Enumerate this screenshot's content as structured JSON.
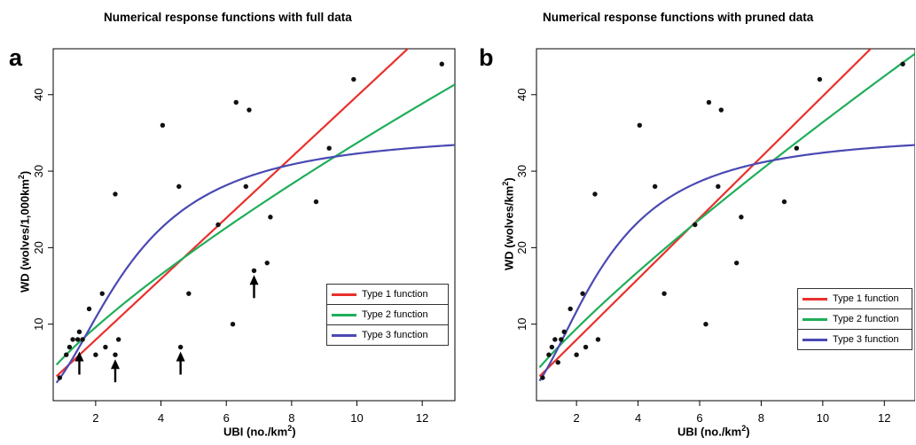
{
  "colors": {
    "type1": "#e8312d",
    "type2": "#1fae5a",
    "type3": "#4a49b3"
  },
  "chart_data": [
    {
      "type": "scatter",
      "panel_label": "a",
      "title": "Numerical response functions with full data",
      "xlabel": "UBI (no./km",
      "xlabel_sup": "2",
      "xlabel_end": ")",
      "ylabel": "WD (wolves/1,000km",
      "ylabel_sup": "2",
      "ylabel_end": ")",
      "xlim": [
        0.7,
        13
      ],
      "ylim": [
        0,
        46
      ],
      "x_ticks": [
        2,
        4,
        6,
        8,
        10,
        12
      ],
      "y_ticks": [
        10,
        20,
        30,
        40
      ],
      "grid": false,
      "legend_position": "bottom-right",
      "points": [
        [
          0.9,
          3
        ],
        [
          1.1,
          6
        ],
        [
          1.2,
          7
        ],
        [
          1.3,
          8
        ],
        [
          1.45,
          8
        ],
        [
          1.5,
          9
        ],
        [
          1.6,
          8
        ],
        [
          1.8,
          12
        ],
        [
          2.0,
          6
        ],
        [
          2.2,
          14
        ],
        [
          2.3,
          7
        ],
        [
          2.6,
          6
        ],
        [
          2.6,
          27
        ],
        [
          2.7,
          8
        ],
        [
          4.05,
          36
        ],
        [
          4.55,
          28
        ],
        [
          4.6,
          7
        ],
        [
          4.85,
          14
        ],
        [
          5.75,
          23
        ],
        [
          6.2,
          10
        ],
        [
          6.3,
          39
        ],
        [
          6.6,
          28
        ],
        [
          6.7,
          38
        ],
        [
          6.85,
          17
        ],
        [
          7.25,
          18
        ],
        [
          7.35,
          24
        ],
        [
          8.75,
          26
        ],
        [
          9.15,
          33
        ],
        [
          9.9,
          42
        ],
        [
          12.6,
          44
        ]
      ],
      "arrows": [
        [
          1.5,
          7
        ],
        [
          2.6,
          6
        ],
        [
          4.6,
          7
        ],
        [
          6.85,
          17
        ]
      ],
      "series": [
        {
          "name": "Type 1 function",
          "type": "linear",
          "a": 3.98,
          "color_key": "type1"
        },
        {
          "name": "Type 2 function",
          "type": "power",
          "a": 5.59,
          "b": 0.78,
          "color_key": "type2"
        },
        {
          "name": "Type 3 function",
          "type": "sigmoid",
          "a": 35.2,
          "b": 9.0,
          "color_key": "type3"
        }
      ]
    },
    {
      "type": "scatter",
      "panel_label": "b",
      "title": "Numerical response functions with pruned data",
      "xlabel": "UBI (no./km",
      "xlabel_sup": "2",
      "xlabel_end": ")",
      "ylabel": "WD (wolves/km",
      "ylabel_sup": "2",
      "ylabel_end": ")",
      "xlim": [
        0.7,
        13
      ],
      "ylim": [
        0,
        46
      ],
      "x_ticks": [
        2,
        4,
        6,
        8,
        10,
        12
      ],
      "y_ticks": [
        10,
        20,
        30,
        40
      ],
      "grid": false,
      "legend_position": "bottom-right",
      "points": [
        [
          0.9,
          3
        ],
        [
          1.1,
          6
        ],
        [
          1.2,
          7
        ],
        [
          1.3,
          8
        ],
        [
          1.4,
          5
        ],
        [
          1.5,
          8
        ],
        [
          1.6,
          9
        ],
        [
          1.8,
          12
        ],
        [
          2.0,
          6
        ],
        [
          2.2,
          14
        ],
        [
          2.3,
          7
        ],
        [
          2.6,
          27
        ],
        [
          2.7,
          8
        ],
        [
          4.05,
          36
        ],
        [
          4.55,
          28
        ],
        [
          4.85,
          14
        ],
        [
          5.85,
          23
        ],
        [
          6.2,
          10
        ],
        [
          6.3,
          39
        ],
        [
          6.6,
          28
        ],
        [
          6.7,
          38
        ],
        [
          7.2,
          18
        ],
        [
          7.35,
          24
        ],
        [
          8.75,
          26
        ],
        [
          9.15,
          33
        ],
        [
          9.9,
          42
        ],
        [
          12.6,
          44
        ]
      ],
      "arrows": [],
      "series": [
        {
          "name": "Type 1 function",
          "type": "linear",
          "a": 3.98,
          "color_key": "type1"
        },
        {
          "name": "Type 2 function",
          "type": "power",
          "a": 5.26,
          "b": 0.84,
          "color_key": "type2"
        },
        {
          "name": "Type 3 function",
          "type": "sigmoid",
          "a": 35.0,
          "b": 8.0,
          "color_key": "type3"
        }
      ]
    }
  ]
}
